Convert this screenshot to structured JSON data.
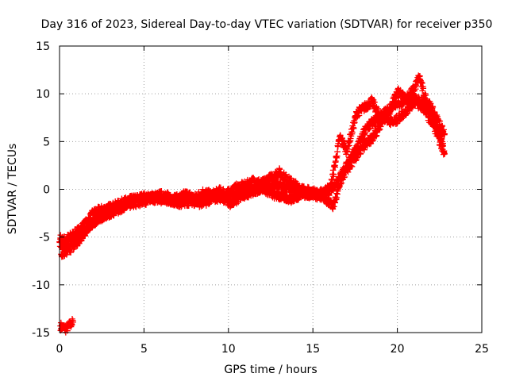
{
  "chart_data": {
    "type": "scatter",
    "title": "Day 316 of 2023, Sidereal Day-to-day VTEC variation (SDTVAR) for receiver p350",
    "xlabel": "GPS time / hours",
    "ylabel": "SDTVAR / TECUs",
    "xlim": [
      0,
      25
    ],
    "ylim": [
      -15,
      15
    ],
    "xticks": [
      0,
      5,
      10,
      15,
      20,
      25
    ],
    "xtick_labels": [
      "0",
      "5",
      "10",
      "15",
      "20",
      "25"
    ],
    "yticks": [
      -15,
      -10,
      -5,
      0,
      5,
      10,
      15
    ],
    "ytick_labels": [
      "-15",
      "-10",
      "-5",
      "0",
      "5",
      "10",
      "15"
    ],
    "grid": true,
    "legend": "none",
    "marker": "plus",
    "series": [
      {
        "name": "SDTVAR",
        "color": "#ff0000",
        "x": [
          0.05,
          0.2,
          0.4,
          0.6,
          0.8,
          0.05,
          0.2,
          0.4,
          0.6,
          0.8,
          1.0,
          1.3,
          1.6,
          2.0,
          2.4,
          2.8,
          3.2,
          3.6,
          4.0,
          4.5,
          5.0,
          5.5,
          6.0,
          6.5,
          7.0,
          7.5,
          8.0,
          8.5,
          9.0,
          9.5,
          10.0,
          10.5,
          11.0,
          11.5,
          12.0,
          12.5,
          13.0,
          13.5,
          14.0,
          14.5,
          15.0,
          15.5,
          16.0,
          16.3,
          16.6,
          17.0,
          17.3,
          17.6,
          18.0,
          18.5,
          19.0,
          19.5,
          20.0,
          20.5,
          21.0,
          21.3,
          21.6,
          22.0,
          22.3,
          22.6,
          22.8,
          0.1,
          0.4,
          0.8,
          1.2,
          1.7,
          2.2,
          2.7,
          3.2,
          3.8,
          4.4,
          5.0,
          5.7,
          6.4,
          7.1,
          7.8,
          8.4,
          9.0,
          9.6,
          10.2,
          10.8,
          11.4,
          12.0,
          12.6,
          13.2,
          13.8,
          14.4,
          15.0,
          15.6,
          16.2,
          16.8,
          17.4,
          18.0,
          18.6,
          19.2,
          19.8,
          20.4,
          21.0,
          21.6,
          22.2,
          22.8,
          0.0,
          0.2,
          0.4,
          0.6,
          0.8,
          1.0,
          1.4,
          1.8,
          2.3,
          2.8,
          3.4,
          4.0,
          4.8,
          5.6,
          6.5,
          7.4,
          8.3,
          9.2,
          10.1,
          11.0,
          11.9,
          12.8,
          13.7,
          14.6,
          15.5,
          16.4,
          17.3,
          18.2,
          19.1,
          20.0,
          20.9,
          21.8,
          22.7
        ],
        "y": [
          -14.3,
          -14.5,
          -14.6,
          -14.2,
          -13.9,
          -5.1,
          -5.4,
          -5.2,
          -5.0,
          -4.8,
          -4.5,
          -4.0,
          -3.5,
          -2.5,
          -2.2,
          -2.0,
          -1.8,
          -1.5,
          -1.2,
          -1.0,
          -0.8,
          -0.9,
          -0.6,
          -0.8,
          -1.0,
          -0.5,
          -0.9,
          -0.3,
          -0.6,
          -0.2,
          -0.4,
          0.2,
          0.4,
          0.9,
          0.6,
          1.2,
          1.8,
          1.0,
          0.4,
          -0.1,
          -0.3,
          -0.6,
          -0.2,
          2.5,
          5.5,
          4.0,
          6.0,
          8.0,
          8.5,
          9.2,
          7.5,
          8.0,
          10.2,
          9.5,
          10.5,
          11.8,
          9.8,
          8.5,
          7.5,
          6.5,
          5.8,
          -6.8,
          -6.5,
          -6.0,
          -5.2,
          -4.0,
          -3.2,
          -2.8,
          -2.2,
          -1.5,
          -1.2,
          -1.0,
          -0.8,
          -1.0,
          -1.5,
          -1.2,
          -1.5,
          -1.0,
          -0.8,
          -1.6,
          -0.6,
          -0.3,
          0.2,
          -0.5,
          -0.8,
          -1.0,
          -0.4,
          -0.6,
          -0.7,
          -1.8,
          1.5,
          3.0,
          4.5,
          5.5,
          7.5,
          7.0,
          8.0,
          9.2,
          8.4,
          6.5,
          3.7,
          -5.5,
          -5.8,
          -5.6,
          -5.3,
          -5.0,
          -4.9,
          -4.6,
          -3.8,
          -3.0,
          -2.6,
          -2.2,
          -1.6,
          -1.3,
          -1.0,
          -1.2,
          -0.9,
          -1.2,
          -0.6,
          -0.8,
          -0.3,
          0.1,
          0.5,
          0.0,
          -0.5,
          -0.4,
          0.5,
          3.5,
          6.5,
          7.8,
          9.0,
          9.6,
          8.6,
          4.8
        ]
      }
    ]
  }
}
